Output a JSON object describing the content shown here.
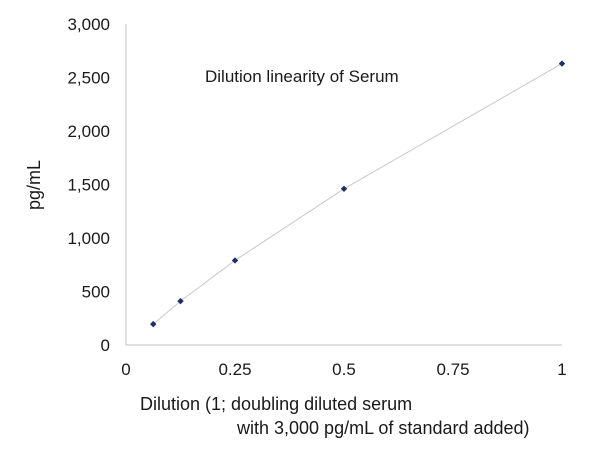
{
  "chart_data": {
    "type": "scatter",
    "title": "Dilution linearity of Serum",
    "xlabel_line1": "Dilution (1; doubling diluted serum",
    "xlabel_line2": "with 3,000 pg/mL of standard added)",
    "ylabel": "pg/mL",
    "xlim": [
      0,
      1
    ],
    "ylim": [
      0,
      3000
    ],
    "x_ticks": [
      0,
      0.25,
      0.5,
      0.75,
      1
    ],
    "x_tick_labels": [
      "0",
      "0.25",
      "0.5",
      "0.75",
      "1"
    ],
    "y_ticks": [
      0,
      500,
      1000,
      1500,
      2000,
      2500,
      3000
    ],
    "y_tick_labels": [
      "0",
      "500",
      "1,000",
      "1,500",
      "2,000",
      "2,500",
      "3,000"
    ],
    "grid": false,
    "legend": false,
    "trendline": true,
    "series": [
      {
        "x": [
          0.0625,
          0.125,
          0.25,
          0.5,
          1
        ],
        "y": [
          195,
          410,
          790,
          1460,
          2630
        ]
      }
    ],
    "colors": {
      "marker": "#1f2d6b",
      "line": "#c8c8c8",
      "axis": "#bfbfbf",
      "text": "#1a1a1a"
    }
  }
}
